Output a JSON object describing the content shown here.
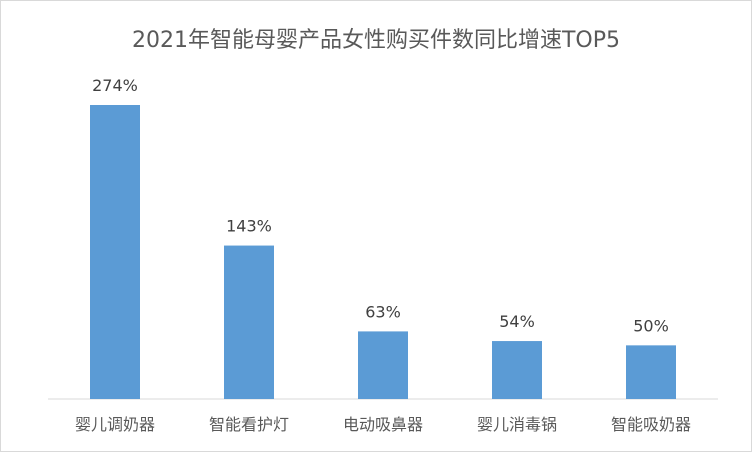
{
  "chart_data": {
    "type": "bar",
    "title": "2021年智能母婴产品女性购买件数同比增速TOP5",
    "categories": [
      "婴儿调奶器",
      "智能看护灯",
      "电动吸鼻器",
      "婴儿消毒锅",
      "智能吸奶器"
    ],
    "values": [
      274,
      143,
      63,
      54,
      50
    ],
    "data_labels": [
      "274%",
      "143%",
      "63%",
      "54%",
      "50%"
    ],
    "unit": "%",
    "ylim": [
      0,
      300
    ],
    "xlabel": "",
    "ylabel": "",
    "grid": false,
    "legend": "none",
    "bar_color": "#5b9bd5"
  }
}
